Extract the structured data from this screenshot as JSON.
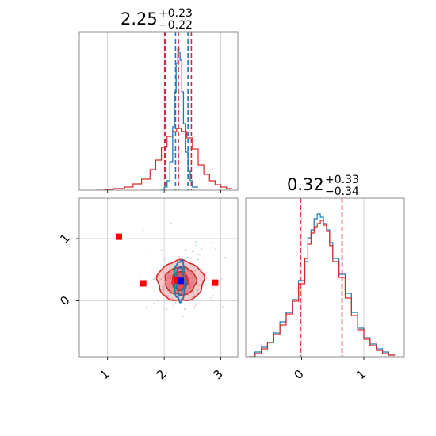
{
  "colors": {
    "blue": "#1f77b4",
    "red": "#d62728",
    "grid": "#c8c8c8",
    "axis": "#808080"
  },
  "chart_data": [
    {
      "type": "histogram",
      "panel": "top-left",
      "title": {
        "value": "2.25",
        "plus": "+0.23",
        "minus": "−0.22"
      },
      "xlim": [
        0.5,
        3.3
      ],
      "grid": true,
      "blue_quantile_lines": [
        2.03,
        2.2,
        2.42
      ],
      "red_quantile_lines": [
        2.01,
        2.25,
        2.48
      ],
      "blue_curve": [
        [
          1.9,
          0
        ],
        [
          2.0,
          0.02
        ],
        [
          2.05,
          0.06
        ],
        [
          2.1,
          0.18
        ],
        [
          2.15,
          0.4
        ],
        [
          2.18,
          0.62
        ],
        [
          2.21,
          0.8
        ],
        [
          2.24,
          0.9
        ],
        [
          2.26,
          0.87
        ],
        [
          2.28,
          0.82
        ],
        [
          2.31,
          0.62
        ],
        [
          2.34,
          0.42
        ],
        [
          2.38,
          0.24
        ],
        [
          2.42,
          0.12
        ],
        [
          2.46,
          0.06
        ],
        [
          2.5,
          0.02
        ],
        [
          2.6,
          0
        ]
      ],
      "red_curve": [
        [
          0.8,
          0
        ],
        [
          0.95,
          0.005
        ],
        [
          1.1,
          0.01
        ],
        [
          1.3,
          0.02
        ],
        [
          1.45,
          0.04
        ],
        [
          1.6,
          0.07
        ],
        [
          1.75,
          0.13
        ],
        [
          1.85,
          0.19
        ],
        [
          1.95,
          0.27
        ],
        [
          2.05,
          0.34
        ],
        [
          2.15,
          0.37
        ],
        [
          2.22,
          0.39
        ],
        [
          2.3,
          0.37
        ],
        [
          2.4,
          0.33
        ],
        [
          2.5,
          0.26
        ],
        [
          2.6,
          0.16
        ],
        [
          2.7,
          0.1
        ],
        [
          2.8,
          0.06
        ],
        [
          2.9,
          0.035
        ],
        [
          3.0,
          0.02
        ],
        [
          3.1,
          0.01
        ],
        [
          3.2,
          0
        ]
      ]
    },
    {
      "type": "histogram",
      "panel": "bottom-right",
      "title": {
        "value": "0.32",
        "plus": "+0.33",
        "minus": "−0.34"
      },
      "xlim": [
        -0.9,
        1.65
      ],
      "x_ticks": [
        "0",
        "1"
      ],
      "x_tick_values": [
        0,
        1
      ],
      "grid": true,
      "red_quantile_lines": [
        -0.02,
        0.65
      ],
      "blue_curve": [
        [
          -0.85,
          0
        ],
        [
          -0.75,
          0.03
        ],
        [
          -0.65,
          0.06
        ],
        [
          -0.55,
          0.09
        ],
        [
          -0.45,
          0.15
        ],
        [
          -0.35,
          0.22
        ],
        [
          -0.25,
          0.28
        ],
        [
          -0.15,
          0.36
        ],
        [
          -0.05,
          0.48
        ],
        [
          0.05,
          0.6
        ],
        [
          0.1,
          0.75
        ],
        [
          0.15,
          0.8
        ],
        [
          0.2,
          0.87
        ],
        [
          0.25,
          0.9
        ],
        [
          0.3,
          0.88
        ],
        [
          0.35,
          0.84
        ],
        [
          0.4,
          0.8
        ],
        [
          0.45,
          0.72
        ],
        [
          0.5,
          0.62
        ],
        [
          0.6,
          0.52
        ],
        [
          0.7,
          0.4
        ],
        [
          0.8,
          0.28
        ],
        [
          0.9,
          0.18
        ],
        [
          1.0,
          0.12
        ],
        [
          1.1,
          0.08
        ],
        [
          1.2,
          0.05
        ],
        [
          1.3,
          0.03
        ],
        [
          1.4,
          0.01
        ],
        [
          1.5,
          0
        ]
      ],
      "red_curve": [
        [
          -0.85,
          0
        ],
        [
          -0.75,
          0.02
        ],
        [
          -0.65,
          0.05
        ],
        [
          -0.55,
          0.09
        ],
        [
          -0.45,
          0.14
        ],
        [
          -0.35,
          0.2
        ],
        [
          -0.25,
          0.27
        ],
        [
          -0.15,
          0.35
        ],
        [
          -0.05,
          0.46
        ],
        [
          0.05,
          0.62
        ],
        [
          0.1,
          0.71
        ],
        [
          0.15,
          0.78
        ],
        [
          0.2,
          0.82
        ],
        [
          0.25,
          0.84
        ],
        [
          0.3,
          0.86
        ],
        [
          0.35,
          0.83
        ],
        [
          0.4,
          0.79
        ],
        [
          0.45,
          0.7
        ],
        [
          0.5,
          0.6
        ],
        [
          0.6,
          0.5
        ],
        [
          0.7,
          0.37
        ],
        [
          0.8,
          0.26
        ],
        [
          0.9,
          0.17
        ],
        [
          1.0,
          0.11
        ],
        [
          1.1,
          0.07
        ],
        [
          1.2,
          0.04
        ],
        [
          1.3,
          0.02
        ],
        [
          1.4,
          0.01
        ],
        [
          1.5,
          0
        ]
      ]
    },
    {
      "type": "contour",
      "panel": "bottom-left",
      "xlim": [
        0.5,
        3.3
      ],
      "ylim": [
        -0.9,
        1.65
      ],
      "x_ticks": [
        "1",
        "2",
        "3"
      ],
      "x_tick_values": [
        1,
        2,
        3
      ],
      "y_ticks": [
        "0",
        "1"
      ],
      "y_tick_values": [
        0,
        1
      ],
      "grid": true,
      "red_contours": [
        {
          "cx": 2.29,
          "cy": 0.32,
          "rx": 0.82,
          "ry": 0.65,
          "fill_opacity": 0.45
        },
        {
          "cx": 2.29,
          "cy": 0.32,
          "rx": 0.55,
          "ry": 0.45,
          "fill_opacity": 0.7
        },
        {
          "cx": 2.28,
          "cy": 0.32,
          "rx": 0.28,
          "ry": 0.3,
          "fill_opacity": 1.0
        }
      ],
      "blue_contours": [
        {
          "cx": 2.28,
          "cy": 0.32,
          "rx": 0.2,
          "ry": 0.65
        },
        {
          "cx": 2.28,
          "cy": 0.32,
          "rx": 0.13,
          "ry": 0.45
        }
      ],
      "markers": [
        {
          "x": 1.2,
          "y": 1.03,
          "color": "red"
        },
        {
          "x": 1.63,
          "y": 0.28,
          "color": "red"
        },
        {
          "x": 2.9,
          "y": 0.29,
          "color": "red"
        },
        {
          "x": 2.23,
          "y": 0.33,
          "color": "red"
        },
        {
          "x": 2.29,
          "y": 0.32,
          "color": "blue"
        }
      ]
    }
  ]
}
